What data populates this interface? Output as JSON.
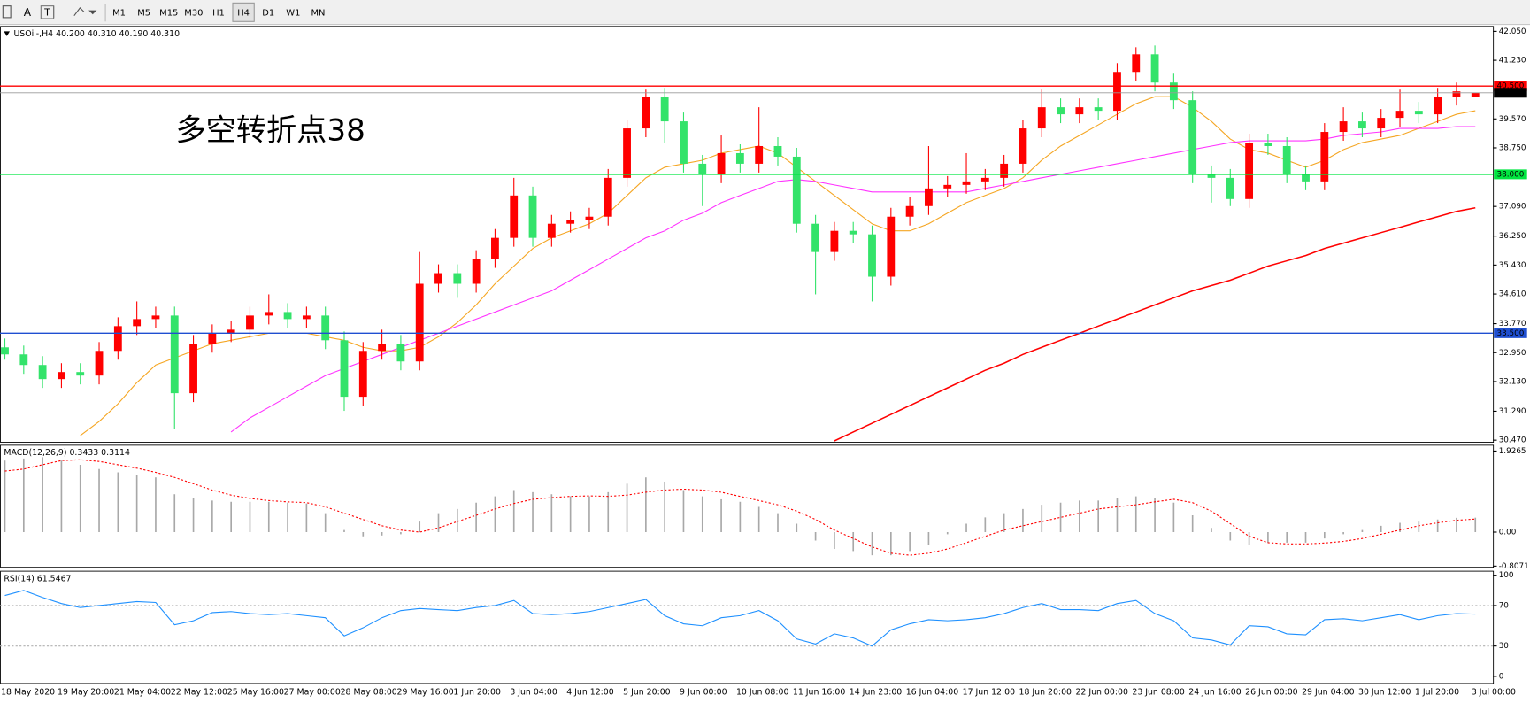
{
  "toolbar": {
    "text_tools": [
      "A",
      "T"
    ],
    "timeframes": [
      "M1",
      "M5",
      "M15",
      "M30",
      "H1",
      "H4",
      "D1",
      "W1",
      "MN"
    ],
    "active": "H4"
  },
  "chart_data": [
    {
      "type": "candlestick",
      "title": "USOil-,H4 40.200 40.310 40.190 40.310",
      "categories": [
        "18 May 2020",
        null,
        null,
        "19 May 20:00",
        null,
        null,
        "21 May 04:00",
        null,
        null,
        "22 May 12:00",
        null,
        null,
        "25 May 16:00",
        null,
        null,
        "27 May 00:00",
        null,
        null,
        "28 May 08:00",
        null,
        null,
        "29 May 16:00",
        null,
        null,
        "1 Jun 20:00",
        null,
        null,
        "3 Jun 04:00",
        null,
        null,
        "4 Jun 12:00",
        null,
        null,
        "5 Jun 20:00",
        null,
        null,
        "9 Jun 00:00",
        null,
        null,
        "10 Jun 08:00",
        null,
        null,
        "11 Jun 16:00",
        null,
        null,
        "14 Jun 23:00",
        null,
        null,
        "16 Jun 04:00",
        null,
        null,
        "17 Jun 12:00",
        null,
        null,
        "18 Jun 20:00",
        null,
        null,
        "22 Jun 00:00",
        null,
        null,
        "23 Jun 08:00",
        null,
        null,
        "24 Jun 16:00",
        null,
        null,
        "26 Jun 00:00",
        null,
        null,
        "29 Jun 04:00",
        null,
        null,
        "30 Jun 12:00",
        null,
        null,
        "1 Jul 20:00",
        null,
        null,
        "3 Jul 00:00"
      ],
      "open": [
        33.1,
        32.9,
        32.6,
        32.2,
        32.4,
        32.3,
        33.0,
        33.7,
        33.9,
        34.0,
        31.8,
        33.2,
        33.5,
        33.6,
        34.0,
        34.1,
        33.9,
        34.0,
        33.3,
        31.7,
        33.0,
        33.2,
        32.7,
        34.9,
        35.2,
        34.9,
        35.6,
        36.2,
        37.4,
        36.2,
        36.6,
        36.7,
        36.8,
        37.9,
        39.3,
        40.2,
        39.5,
        38.3,
        38.0,
        38.6,
        38.3,
        38.8,
        38.5,
        36.6,
        35.8,
        36.4,
        36.3,
        35.1,
        36.8,
        37.1,
        37.6,
        37.7,
        37.8,
        37.9,
        38.3,
        39.3,
        39.9,
        39.7,
        39.9,
        39.8,
        40.9,
        41.4,
        40.6,
        40.1,
        38.0,
        37.9,
        37.3,
        38.9,
        38.8,
        38.0,
        37.8,
        39.2,
        39.5,
        39.3,
        39.6,
        39.8,
        39.7,
        40.2,
        40.2
      ],
      "high": [
        33.35,
        33.15,
        32.85,
        32.65,
        32.65,
        33.25,
        33.95,
        34.4,
        34.25,
        34.25,
        33.45,
        33.75,
        33.85,
        34.25,
        34.6,
        34.35,
        34.25,
        34.25,
        33.55,
        33.25,
        33.6,
        33.45,
        35.8,
        35.45,
        35.45,
        35.85,
        36.45,
        37.9,
        37.65,
        36.85,
        36.95,
        37.05,
        38.15,
        39.55,
        40.4,
        40.45,
        39.75,
        38.55,
        39.1,
        38.85,
        39.9,
        39.05,
        38.75,
        36.85,
        36.65,
        36.65,
        36.55,
        37.05,
        37.35,
        38.8,
        37.95,
        38.6,
        38.15,
        38.55,
        39.55,
        40.4,
        40.15,
        40.15,
        40.15,
        41.15,
        41.6,
        41.65,
        40.85,
        40.35,
        38.25,
        38.15,
        39.15,
        39.15,
        39.05,
        38.25,
        39.45,
        39.9,
        39.75,
        39.85,
        40.4,
        40.05,
        40.45,
        40.6,
        40.31
      ],
      "low": [
        32.75,
        32.35,
        31.95,
        31.95,
        32.05,
        32.05,
        32.75,
        33.45,
        33.65,
        30.8,
        31.55,
        32.95,
        33.25,
        33.35,
        33.75,
        33.65,
        33.65,
        33.05,
        31.3,
        31.45,
        32.75,
        32.45,
        32.45,
        34.65,
        34.5,
        34.65,
        35.35,
        35.95,
        35.95,
        35.95,
        36.35,
        36.45,
        36.55,
        37.65,
        39.05,
        38.9,
        38.05,
        37.1,
        37.75,
        38.05,
        38.05,
        38.25,
        36.35,
        34.6,
        35.55,
        36.05,
        34.4,
        34.85,
        36.55,
        36.85,
        37.35,
        37.45,
        37.55,
        37.65,
        38.05,
        39.05,
        39.45,
        39.45,
        39.55,
        39.55,
        40.65,
        40.35,
        39.85,
        37.75,
        37.2,
        37.1,
        37.05,
        38.55,
        37.75,
        37.55,
        37.55,
        38.95,
        39.05,
        39.05,
        39.35,
        39.45,
        39.45,
        39.95,
        40.19
      ],
      "close": [
        32.9,
        32.6,
        32.2,
        32.4,
        32.3,
        33.0,
        33.7,
        33.9,
        34.0,
        31.8,
        33.2,
        33.5,
        33.6,
        34.0,
        34.1,
        33.9,
        34.0,
        33.3,
        31.7,
        33.0,
        33.2,
        32.7,
        34.9,
        35.2,
        34.9,
        35.6,
        36.2,
        37.4,
        36.2,
        36.6,
        36.7,
        36.8,
        37.9,
        39.3,
        40.2,
        39.5,
        38.3,
        38.0,
        38.6,
        38.3,
        38.8,
        38.5,
        36.6,
        35.8,
        36.4,
        36.3,
        35.1,
        36.8,
        37.1,
        37.6,
        37.7,
        37.8,
        37.9,
        38.3,
        39.3,
        39.9,
        39.7,
        39.9,
        39.8,
        40.9,
        41.4,
        40.6,
        40.1,
        38.0,
        37.9,
        37.3,
        38.9,
        38.8,
        38.0,
        37.8,
        39.2,
        39.5,
        39.3,
        39.6,
        39.8,
        39.7,
        40.2,
        40.35,
        40.31
      ],
      "up_color": "#ff0000",
      "down_color": "#33e36a",
      "overlays": [
        {
          "color": "#f5a623",
          "values": [
            null,
            null,
            null,
            null,
            30.6,
            31.0,
            31.5,
            32.1,
            32.6,
            32.8,
            33.0,
            33.2,
            33.3,
            33.4,
            33.5,
            33.5,
            33.5,
            33.4,
            33.3,
            33.1,
            33.0,
            33.0,
            33.1,
            33.4,
            33.8,
            34.3,
            34.9,
            35.4,
            35.9,
            36.2,
            36.4,
            36.6,
            36.9,
            37.4,
            37.9,
            38.2,
            38.3,
            38.4,
            38.6,
            38.7,
            38.8,
            38.6,
            38.2,
            37.8,
            37.4,
            37.0,
            36.6,
            36.4,
            36.4,
            36.6,
            36.9,
            37.2,
            37.4,
            37.6,
            37.9,
            38.4,
            38.8,
            39.1,
            39.4,
            39.7,
            40.0,
            40.2,
            40.2,
            39.9,
            39.5,
            39.0,
            38.7,
            38.6,
            38.4,
            38.2,
            38.4,
            38.7,
            38.9,
            39.0,
            39.1,
            39.3,
            39.5,
            39.7,
            39.8
          ]
        },
        {
          "color": "#ff33ff",
          "values": [
            null,
            null,
            null,
            null,
            null,
            null,
            null,
            null,
            null,
            null,
            null,
            null,
            30.7,
            31.1,
            31.4,
            31.7,
            32.0,
            32.3,
            32.5,
            32.7,
            32.9,
            33.1,
            33.3,
            33.5,
            33.7,
            33.9,
            34.1,
            34.3,
            34.5,
            34.7,
            35.0,
            35.3,
            35.6,
            35.9,
            36.2,
            36.4,
            36.7,
            36.9,
            37.2,
            37.4,
            37.6,
            37.8,
            37.85,
            37.8,
            37.7,
            37.6,
            37.5,
            37.5,
            37.5,
            37.5,
            37.5,
            37.5,
            37.6,
            37.7,
            37.8,
            37.9,
            38.0,
            38.1,
            38.2,
            38.3,
            38.4,
            38.5,
            38.6,
            38.7,
            38.8,
            38.9,
            38.95,
            38.95,
            38.95,
            38.95,
            39.0,
            39.1,
            39.15,
            39.2,
            39.3,
            39.3,
            39.3,
            39.35,
            39.35
          ]
        },
        {
          "color": "#ff0000",
          "values": [
            null,
            null,
            null,
            null,
            null,
            null,
            null,
            null,
            null,
            null,
            null,
            null,
            null,
            null,
            null,
            null,
            null,
            null,
            null,
            null,
            null,
            null,
            null,
            null,
            null,
            null,
            null,
            null,
            null,
            null,
            null,
            null,
            null,
            null,
            null,
            null,
            null,
            null,
            null,
            null,
            null,
            null,
            null,
            null,
            30.45,
            30.7,
            30.95,
            31.2,
            31.45,
            31.7,
            31.95,
            32.2,
            32.45,
            32.65,
            32.9,
            33.1,
            33.3,
            33.5,
            33.7,
            33.9,
            34.1,
            34.3,
            34.5,
            34.7,
            34.85,
            35.0,
            35.2,
            35.4,
            35.55,
            35.7,
            35.9,
            36.05,
            36.2,
            36.35,
            36.5,
            36.65,
            36.8,
            36.95,
            37.05
          ]
        }
      ],
      "levels": [
        {
          "value": 40.5,
          "label": "40.500",
          "color": "#ff0000"
        },
        {
          "value": 38,
          "label": "38.000",
          "color": "#00e640"
        },
        {
          "value": 33.5,
          "label": "33.500",
          "color": "#1f4fd1"
        }
      ],
      "last_price": {
        "value": 40.31,
        "label": "40.310"
      },
      "annotation": {
        "text": "多空转折点38",
        "color": "#ff0000"
      },
      "ylim": [
        30.41,
        42.19
      ],
      "yticks": [
        {
          "value": 42.05,
          "label": "42.050"
        },
        {
          "value": 41.23,
          "label": "41.230"
        },
        {
          "value": 39.57,
          "label": "39.570"
        },
        {
          "value": 38.75,
          "label": "38.750"
        },
        {
          "value": 37.09,
          "label": "37.090"
        },
        {
          "value": 36.25,
          "label": "36.250"
        },
        {
          "value": 35.43,
          "label": "35.430"
        },
        {
          "value": 34.61,
          "label": "34.610"
        },
        {
          "value": 33.77,
          "label": "33.770"
        },
        {
          "value": 32.95,
          "label": "32.950"
        },
        {
          "value": 32.13,
          "label": "32.130"
        },
        {
          "value": 31.29,
          "label": "31.290"
        },
        {
          "value": 30.47,
          "label": "30.470"
        }
      ]
    },
    {
      "type": "macd",
      "title": "MACD(12,26,9) 0.3433 0.3114",
      "histogram": [
        1.7,
        1.75,
        1.78,
        1.7,
        1.6,
        1.5,
        1.42,
        1.35,
        1.3,
        0.9,
        0.8,
        0.75,
        0.72,
        0.72,
        0.72,
        0.7,
        0.68,
        0.45,
        0.05,
        -0.1,
        -0.08,
        -0.05,
        0.25,
        0.45,
        0.55,
        0.7,
        0.85,
        1.0,
        0.95,
        0.9,
        0.85,
        0.85,
        0.95,
        1.15,
        1.3,
        1.2,
        1.0,
        0.85,
        0.78,
        0.72,
        0.6,
        0.45,
        0.2,
        -0.2,
        -0.4,
        -0.45,
        -0.55,
        -0.55,
        -0.45,
        -0.3,
        -0.05,
        0.2,
        0.35,
        0.45,
        0.55,
        0.65,
        0.7,
        0.75,
        0.75,
        0.8,
        0.85,
        0.8,
        0.7,
        0.4,
        0.1,
        -0.2,
        -0.3,
        -0.25,
        -0.25,
        -0.25,
        -0.15,
        -0.05,
        0.05,
        0.15,
        0.22,
        0.25,
        0.3,
        0.34,
        0.3433
      ],
      "signal": [
        1.45,
        1.5,
        1.6,
        1.7,
        1.72,
        1.68,
        1.6,
        1.52,
        1.42,
        1.3,
        1.15,
        1.0,
        0.88,
        0.8,
        0.75,
        0.72,
        0.7,
        0.6,
        0.45,
        0.3,
        0.15,
        0.05,
        0.0,
        0.1,
        0.25,
        0.4,
        0.55,
        0.68,
        0.78,
        0.82,
        0.85,
        0.86,
        0.85,
        0.88,
        0.95,
        1.0,
        1.02,
        1.0,
        0.95,
        0.85,
        0.75,
        0.65,
        0.5,
        0.3,
        0.05,
        -0.15,
        -0.35,
        -0.5,
        -0.55,
        -0.5,
        -0.4,
        -0.25,
        -0.1,
        0.05,
        0.15,
        0.25,
        0.35,
        0.45,
        0.55,
        0.6,
        0.65,
        0.72,
        0.78,
        0.7,
        0.5,
        0.2,
        -0.1,
        -0.25,
        -0.28,
        -0.28,
        -0.26,
        -0.22,
        -0.15,
        -0.05,
        0.05,
        0.15,
        0.22,
        0.28,
        0.3114
      ],
      "hist_color": "#a8a8a8",
      "signal_color": "#ff0000",
      "ylim": [
        -0.835,
        2.065
      ],
      "yticks": [
        1.9265,
        {
          "value": 0,
          "label": "0.00"
        },
        -0.8071
      ]
    },
    {
      "type": "rsi",
      "title": "RSI(14) 61.5467",
      "values": [
        80,
        85,
        78,
        72,
        68,
        70,
        72,
        74,
        73,
        51,
        55,
        63,
        64,
        62,
        61,
        62,
        60,
        58,
        40,
        48,
        58,
        65,
        67,
        66,
        65,
        68,
        70,
        75,
        62,
        61,
        62,
        64,
        68,
        72,
        76,
        60,
        52,
        50,
        58,
        60,
        65,
        55,
        37,
        32,
        42,
        38,
        30,
        46,
        52,
        56,
        55,
        56,
        58,
        62,
        68,
        72,
        66,
        66,
        65,
        72,
        75,
        62,
        55,
        38,
        36,
        31,
        50,
        49,
        42,
        41,
        56,
        57,
        55,
        58,
        61,
        56,
        60,
        62,
        61.5467
      ],
      "color": "#1e90ff",
      "levels": [
        70,
        30
      ],
      "ylim": [
        -7,
        104
      ],
      "yticks": [
        100,
        70,
        30,
        0
      ]
    }
  ]
}
